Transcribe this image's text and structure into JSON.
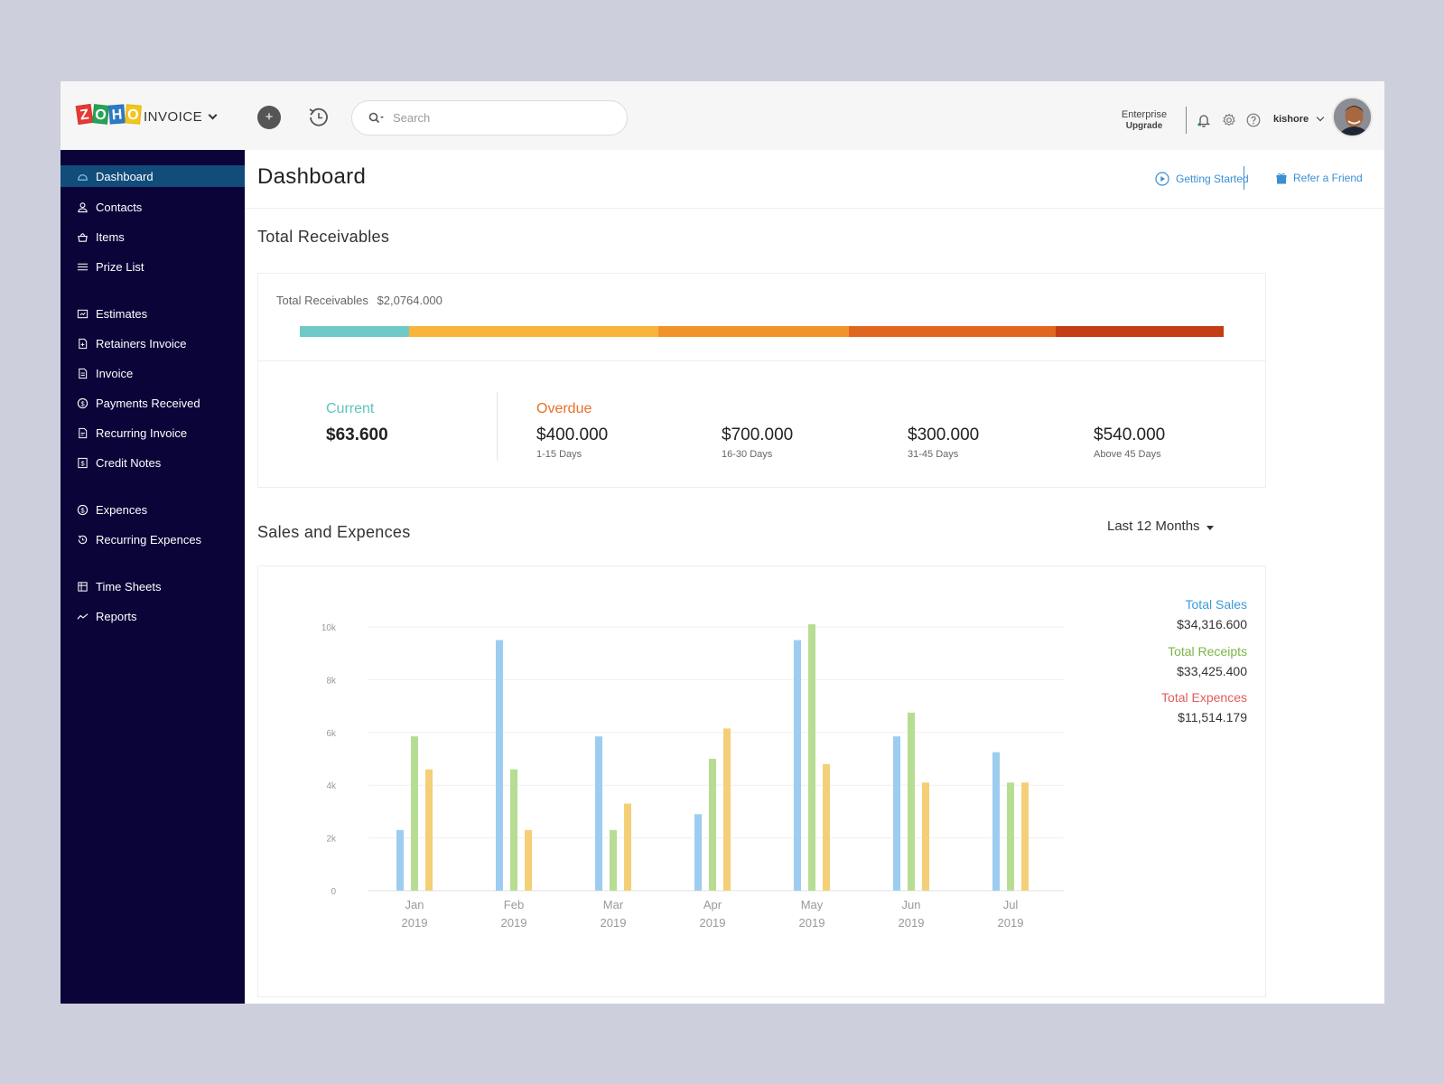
{
  "app": {
    "product": "INVOICE",
    "logo_letters": [
      "Z",
      "O",
      "H",
      "O"
    ],
    "logo_colors": [
      "#e53935",
      "#26a356",
      "#2f79c6",
      "#f5c518"
    ]
  },
  "header": {
    "search_placeholder": "Search",
    "plan": "Enterprise",
    "plan_action": "Upgrade",
    "user_name": "kishore"
  },
  "sidebar": {
    "items": [
      {
        "label": "Dashboard",
        "icon": "dashboard-icon",
        "active": true
      },
      {
        "label": "Contacts",
        "icon": "contacts-icon"
      },
      {
        "label": "Items",
        "icon": "items-icon"
      },
      {
        "label": "Prize List",
        "icon": "list-icon"
      },
      {
        "label": "Estimates",
        "icon": "estimates-icon"
      },
      {
        "label": "Retainers Invoice",
        "icon": "retainer-icon"
      },
      {
        "label": "Invoice",
        "icon": "invoice-icon"
      },
      {
        "label": "Payments Received",
        "icon": "payments-icon"
      },
      {
        "label": "Recurring Invoice",
        "icon": "recurring-invoice-icon"
      },
      {
        "label": "Credit Notes",
        "icon": "credit-notes-icon"
      },
      {
        "label": "Expences",
        "icon": "expences-icon"
      },
      {
        "label": "Recurring Expences",
        "icon": "recurring-expences-icon"
      },
      {
        "label": "Time Sheets",
        "icon": "timesheets-icon"
      },
      {
        "label": "Reports",
        "icon": "reports-icon"
      }
    ]
  },
  "main": {
    "title": "Dashboard",
    "getting_started": "Getting Started",
    "refer_friend": "Refer a Friend"
  },
  "receivables": {
    "section_title": "Total Receivables",
    "label": "Total Receivables",
    "total": "$2,0764.000",
    "current_label": "Current",
    "current_value": "$63.600",
    "overdue_label": "Overdue",
    "buckets": [
      {
        "value": "$400.000",
        "range": "1-15 Days"
      },
      {
        "value": "$700.000",
        "range": "16-30 Days"
      },
      {
        "value": "$300.000",
        "range": "31-45 Days"
      },
      {
        "value": "$540.000",
        "range": "Above 45 Days"
      }
    ],
    "bar_fractions": [
      0.118,
      0.27,
      0.206,
      0.224,
      0.182
    ],
    "bar_colors": [
      "#6fcac7",
      "#f9b43b",
      "#f1932b",
      "#e0671f",
      "#c43d14"
    ],
    "current_color": "#5ec4c0",
    "overdue_color": "#e8702a"
  },
  "sales": {
    "section_title": "Sales and Expences",
    "range": "Last 12 Months",
    "legend": [
      {
        "name": "Total Sales",
        "value": "$34,316.600",
        "color": "#3b9ad9"
      },
      {
        "name": "Total Receipts",
        "value": "$33,425.400",
        "color": "#7ab648"
      },
      {
        "name": "Total Expences",
        "value": "$11,514.179",
        "color": "#e05c5c"
      }
    ]
  },
  "chart_data": {
    "type": "bar",
    "categories": [
      "Jan",
      "Feb",
      "Mar",
      "Apr",
      "May",
      "Jun",
      "Jul"
    ],
    "category_years": [
      "2019",
      "2019",
      "2019",
      "2019",
      "2019",
      "2019",
      "2019"
    ],
    "y_ticks": [
      "0",
      "2k",
      "4k",
      "6k",
      "8k",
      "10k"
    ],
    "ylim": [
      0,
      10000
    ],
    "grid": true,
    "series": [
      {
        "values": [
          2300,
          9500,
          5850,
          2900,
          9500,
          5850,
          5250
        ],
        "color": "#9ccdf0"
      },
      {
        "values": [
          5850,
          4600,
          2300,
          5000,
          10100,
          6750,
          4100
        ],
        "color": "#b7dd93"
      },
      {
        "values": [
          4600,
          2300,
          3300,
          6150,
          4800,
          4100,
          4100
        ],
        "color": "#f4cf77"
      }
    ]
  }
}
